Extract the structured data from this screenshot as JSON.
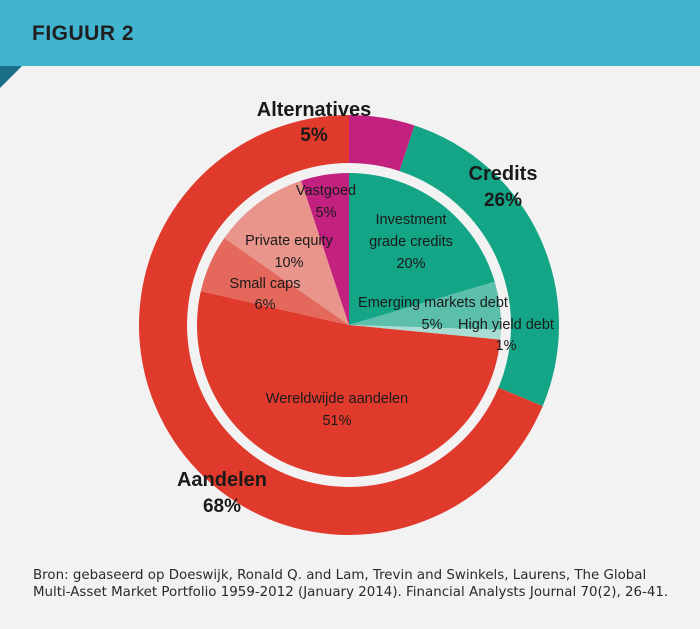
{
  "header": {
    "title": "FIGUUR 2"
  },
  "chart_data": {
    "type": "pie",
    "outer_ring": [
      {
        "name": "Alternatives",
        "value": 5,
        "label": "5%",
        "color": "#c2217f"
      },
      {
        "name": "Credits",
        "value": 26,
        "label": "26%",
        "color": "#14a586"
      },
      {
        "name": "Aandelen",
        "value": 68,
        "label": "68%",
        "color": "#e03a2c"
      }
    ],
    "inner_ring": [
      {
        "name": "Investment\ngrade credits",
        "value": 20,
        "label": "20%",
        "color": "#14a586"
      },
      {
        "name": "Emerging markets debt",
        "value": 5,
        "label": "5%",
        "color": "#5bbfab"
      },
      {
        "name": "High yield debt",
        "value": 1,
        "label": "1%",
        "color": "#a9dcd2"
      },
      {
        "name": "Wereldwijde aandelen",
        "value": 51,
        "label": "51%",
        "color": "#e03a2c"
      },
      {
        "name": "Small caps",
        "value": 6,
        "label": "6%",
        "color": "#e4685b"
      },
      {
        "name": "Private equity",
        "value": 10,
        "label": "10%",
        "color": "#e9958c"
      },
      {
        "name": "Vastgoed",
        "value": 5,
        "label": "5%",
        "color": "#c2217f"
      }
    ]
  },
  "source": {
    "text": "Bron: gebaseerd op Doeswijk, Ronald Q. and Lam, Trevin and Swinkels, Laurens, The Global Multi-Asset Market Portfolio 1959-2012 (January 2014). Financial Analysts Journal 70(2), 26-41."
  }
}
